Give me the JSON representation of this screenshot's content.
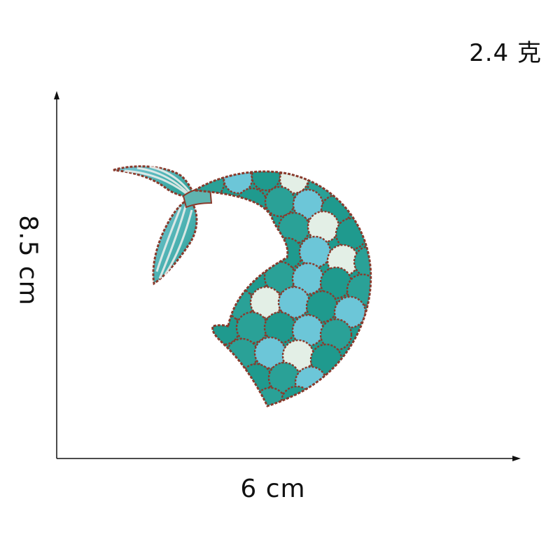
{
  "weight_label": "2.4 克",
  "dimensions": {
    "width_label": "6 cm",
    "height_label": "8.5 cm"
  },
  "image": {
    "subject": "mermaid-tail-embroidered-patch",
    "colors": {
      "teal": "#1f9a8e",
      "aqua": "#6cc6d8",
      "pale": "#e3efe6",
      "outline": "#8a3a2c"
    }
  }
}
